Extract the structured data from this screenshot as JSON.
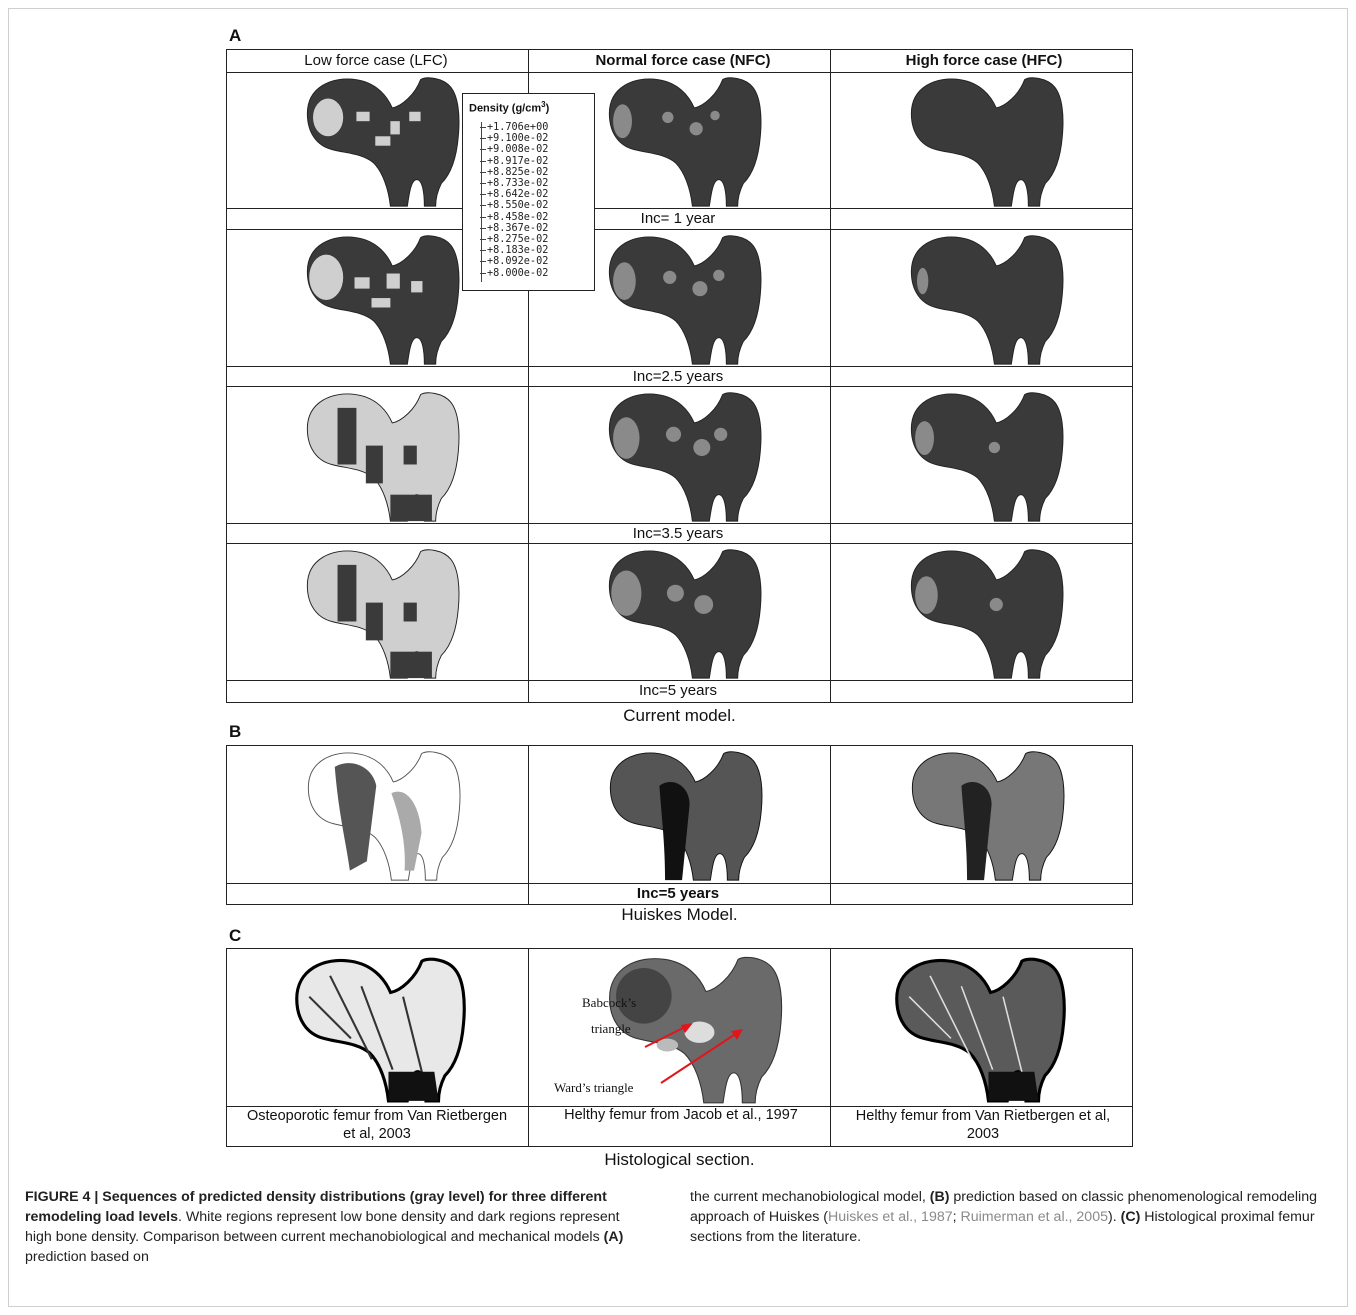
{
  "panels": {
    "A": {
      "letter": "A",
      "column_headers": [
        "Low force case (LFC)",
        "Normal force case (NFC)",
        "High force case (HFC)"
      ],
      "row_labels": [
        "Inc= 1 year",
        "Inc=2.5 years",
        "Inc=3.5 years",
        "Inc=5 years"
      ],
      "caption": "Current model."
    },
    "B": {
      "letter": "B",
      "row_label": "Inc=5 years",
      "caption": "Huiskes Model."
    },
    "C": {
      "letter": "C",
      "cell_labels": [
        "Osteoporotic femur from Van Rietbergen et al, 2003",
        "Helthy femur from Jacob et al., 1997",
        "Helthy femur from Van Rietbergen et al, 2003"
      ],
      "annotations": {
        "babcock": "Babcock’s",
        "babcock2": "triangle",
        "ward": "Ward’s triangle"
      },
      "caption": "Histological section."
    }
  },
  "legend": {
    "title": "Density (g/cm",
    "sup": "3",
    "title_end": ")",
    "values": [
      "+1.706e+00",
      "+9.100e-02",
      "+9.008e-02",
      "+8.917e-02",
      "+8.825e-02",
      "+8.733e-02",
      "+8.642e-02",
      "+8.550e-02",
      "+8.458e-02",
      "+8.367e-02",
      "+8.275e-02",
      "+8.183e-02",
      "+8.092e-02",
      "+8.000e-02"
    ]
  },
  "figure_caption": {
    "bold_lead": "FIGURE 4 | Sequences of predicted density distributions (gray level) for three different remodeling load levels",
    "left_rest": ". White regions represent low bone density and dark regions represent high bone density. Comparison between current mechanobiological and mechanical models ",
    "a_label": "(A)",
    "a_text": " prediction based on",
    "right_start": "the current mechanobiological model, ",
    "b_label": "(B)",
    "b_text": " prediction based on classic phenomenological remodeling approach of Huiskes (",
    "ref1": "Huiskes et al., 1987",
    "sep": "; ",
    "ref2": "Ruimerman et al., 2005",
    "after_refs": "). ",
    "c_label": "(C)",
    "c_text": " Histological proximal femur sections from the literature."
  },
  "colors": {
    "dark_bone": "#3a3a3a",
    "light_bone": "#cfcfcf",
    "reference_gray": "#8a8a8a"
  }
}
